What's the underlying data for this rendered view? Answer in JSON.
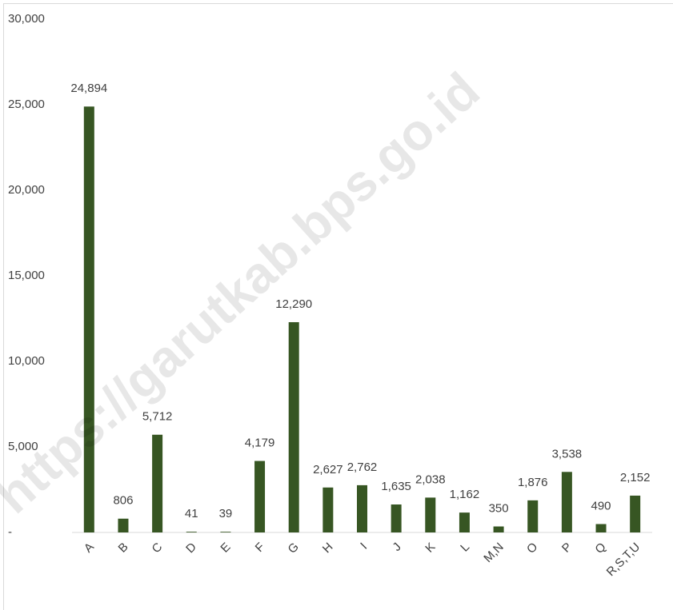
{
  "chart_data": {
    "type": "bar",
    "categories": [
      "A",
      "B",
      "C",
      "D",
      "E",
      "F",
      "G",
      "H",
      "I",
      "J",
      "K",
      "L",
      "M,N",
      "O",
      "P",
      "Q",
      "R,S,T,U"
    ],
    "values": [
      24894,
      806,
      5712,
      41,
      39,
      4179,
      12290,
      2627,
      2762,
      1635,
      2038,
      1162,
      350,
      1876,
      3538,
      490,
      2152
    ],
    "value_labels": [
      "24,894",
      "806",
      "5,712",
      "41",
      "39",
      "4,179",
      "12,290",
      "2,627",
      "2,762",
      "1,635",
      "2,038",
      "1,162",
      "350",
      "1,876",
      "3,538",
      "490",
      "2,152"
    ],
    "color": "#375623",
    "ylim": [
      0,
      30000
    ],
    "yticks": [
      {
        "value": 0,
        "label": "-"
      },
      {
        "value": 5000,
        "label": "5,000"
      },
      {
        "value": 10000,
        "label": "10,000"
      },
      {
        "value": 15000,
        "label": "15,000"
      },
      {
        "value": 20000,
        "label": "20,000"
      },
      {
        "value": 25000,
        "label": "25,000"
      },
      {
        "value": 30000,
        "label": "30,000"
      }
    ],
    "grid": false,
    "watermark": "https://garutkab.bps.go.id"
  }
}
